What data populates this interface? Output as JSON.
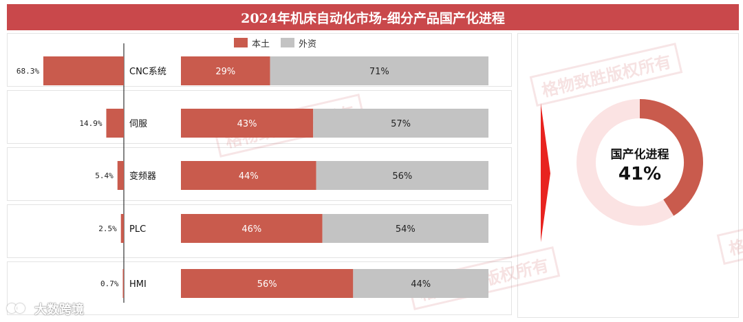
{
  "title": "2024年机床自动化市场-细分产品国产化进程",
  "legend": {
    "domestic_label": "本土",
    "foreign_label": "外资",
    "domestic_color": "#c95b4d",
    "foreign_color": "#c3c3c3"
  },
  "donut": {
    "title": "国产化进程",
    "value_label": "41%",
    "value": 41,
    "color_fill": "#c95b4d",
    "color_track": "#fbe3e3"
  },
  "watermark_text": "格物致胜版权所有",
  "brand_text": "大数跨境",
  "chart_data": [
    {
      "type": "bar",
      "orientation": "horizontal",
      "categories": [
        "CNC系统",
        "伺服",
        "变频器",
        "PLC",
        "HMI"
      ],
      "series": [
        {
          "values": [
            68.3,
            14.9,
            5.4,
            2.5,
            0.7
          ]
        }
      ],
      "value_labels": [
        "68.3%",
        "14.9%",
        "5.4%",
        "2.5%",
        "0.7%"
      ],
      "direction": "leftward",
      "xlim": [
        0,
        100
      ]
    },
    {
      "type": "bar",
      "orientation": "horizontal",
      "stacked": true,
      "percent": true,
      "categories": [
        "CNC系统",
        "伺服",
        "变频器",
        "PLC",
        "HMI"
      ],
      "series": [
        {
          "name": "本土",
          "values": [
            29,
            43,
            44,
            46,
            56
          ],
          "labels": [
            "29%",
            "43%",
            "44%",
            "46%",
            "56%"
          ]
        },
        {
          "name": "外资",
          "values": [
            71,
            57,
            56,
            54,
            44
          ],
          "labels": [
            "71%",
            "57%",
            "56%",
            "54%",
            "44%"
          ]
        }
      ],
      "legend_position": "top-center",
      "xlim": [
        0,
        100
      ]
    },
    {
      "type": "pie",
      "donut": true,
      "categories": [
        "国产化进程"
      ],
      "values": [
        41
      ]
    }
  ]
}
